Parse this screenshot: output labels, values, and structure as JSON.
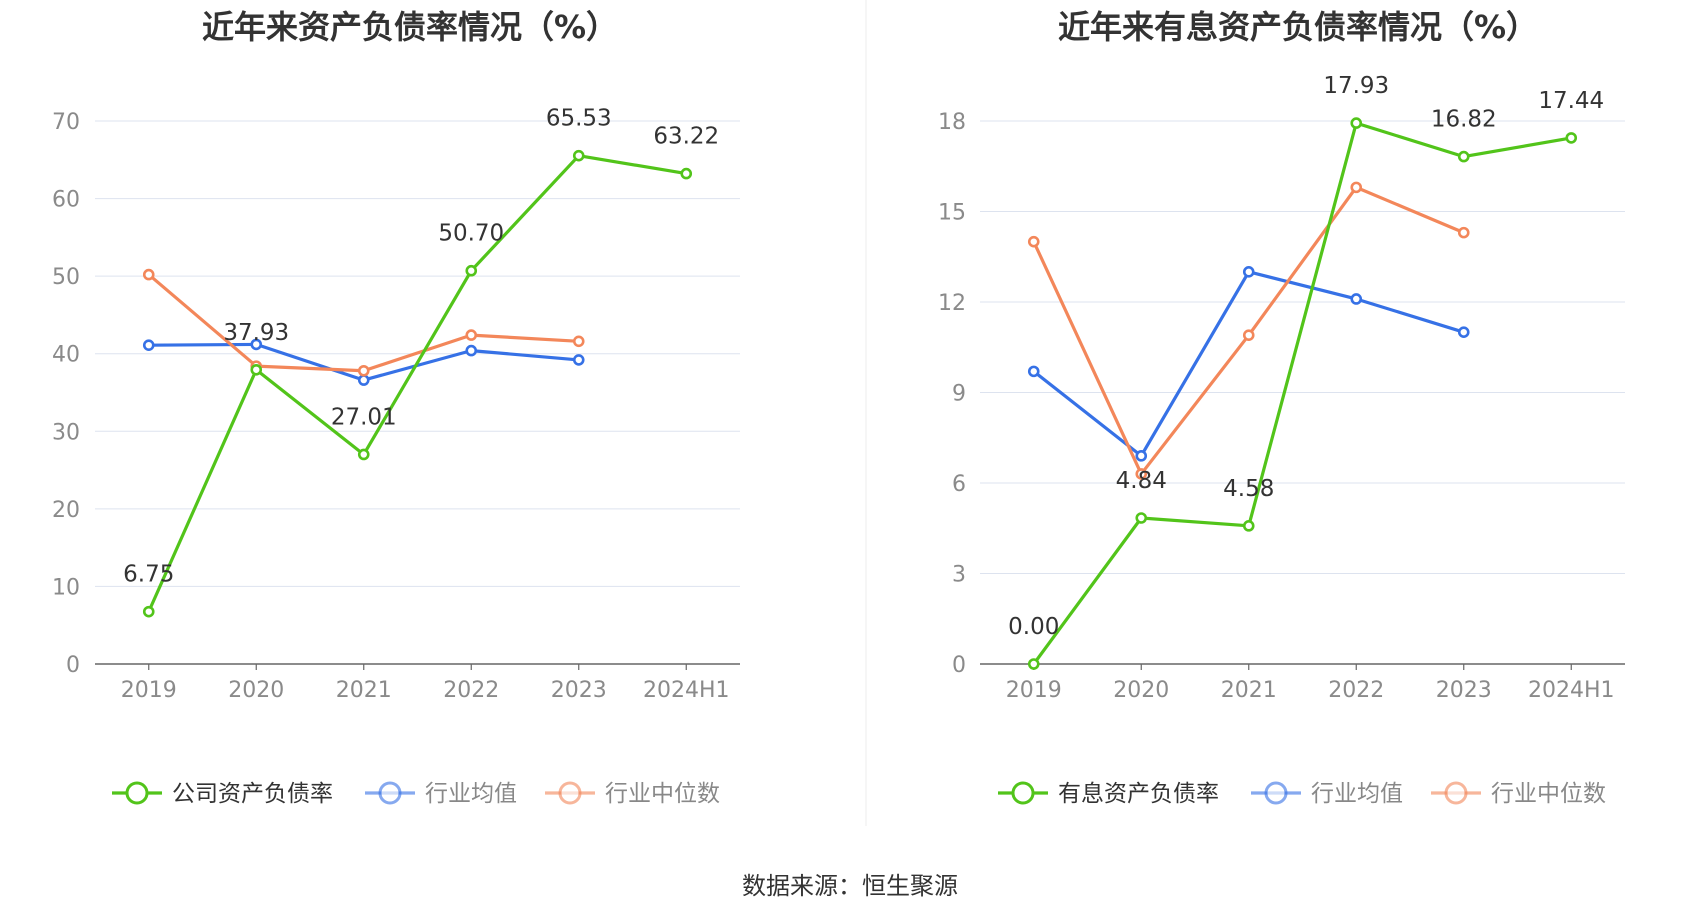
{
  "source_text": "数据来源：恒生聚源",
  "colors": {
    "company": "#52c41a",
    "avg": "#3671e6",
    "median": "#f3875a",
    "grid": "#dde3ef",
    "axis": "#666666",
    "tick_text": "#8a8a8a"
  },
  "chart_data": [
    {
      "type": "line",
      "title": "近年来资产负债率情况（%）",
      "categories": [
        "2019",
        "2020",
        "2021",
        "2022",
        "2023",
        "2024H1"
      ],
      "ylim": [
        0,
        70
      ],
      "yticks": [
        "0",
        "10",
        "20",
        "30",
        "40",
        "50",
        "60",
        "70"
      ],
      "grid": true,
      "legend_position": "bottom",
      "series": [
        {
          "name": "公司资产负债率",
          "color": "#52c41a",
          "values": [
            6.75,
            37.93,
            27.01,
            50.7,
            65.53,
            63.22
          ],
          "labels": [
            "6.75",
            "37.93",
            "27.01",
            "50.70",
            "65.53",
            "63.22"
          ]
        },
        {
          "name": "行业均值",
          "color": "#3671e6",
          "values": [
            41.1,
            41.2,
            36.6,
            40.4,
            39.2,
            null
          ]
        },
        {
          "name": "行业中位数",
          "color": "#f3875a",
          "values": [
            50.2,
            38.4,
            37.8,
            42.4,
            41.6,
            null
          ]
        }
      ]
    },
    {
      "type": "line",
      "title": "近年来有息资产负债率情况（%）",
      "categories": [
        "2019",
        "2020",
        "2021",
        "2022",
        "2023",
        "2024H1"
      ],
      "ylim": [
        0,
        18
      ],
      "yticks": [
        "0",
        "3",
        "6",
        "9",
        "12",
        "15",
        "18"
      ],
      "grid": true,
      "legend_position": "bottom",
      "series": [
        {
          "name": "有息资产负债率",
          "color": "#52c41a",
          "values": [
            0.0,
            4.84,
            4.58,
            17.93,
            16.82,
            17.44
          ],
          "labels": [
            "0.00",
            "4.84",
            "4.58",
            "17.93",
            "16.82",
            "17.44"
          ]
        },
        {
          "name": "行业均值",
          "color": "#3671e6",
          "values": [
            9.7,
            6.9,
            13.0,
            12.1,
            11.0,
            null
          ]
        },
        {
          "name": "行业中位数",
          "color": "#f3875a",
          "values": [
            14.0,
            6.3,
            10.9,
            15.8,
            14.3,
            null
          ]
        }
      ]
    }
  ]
}
